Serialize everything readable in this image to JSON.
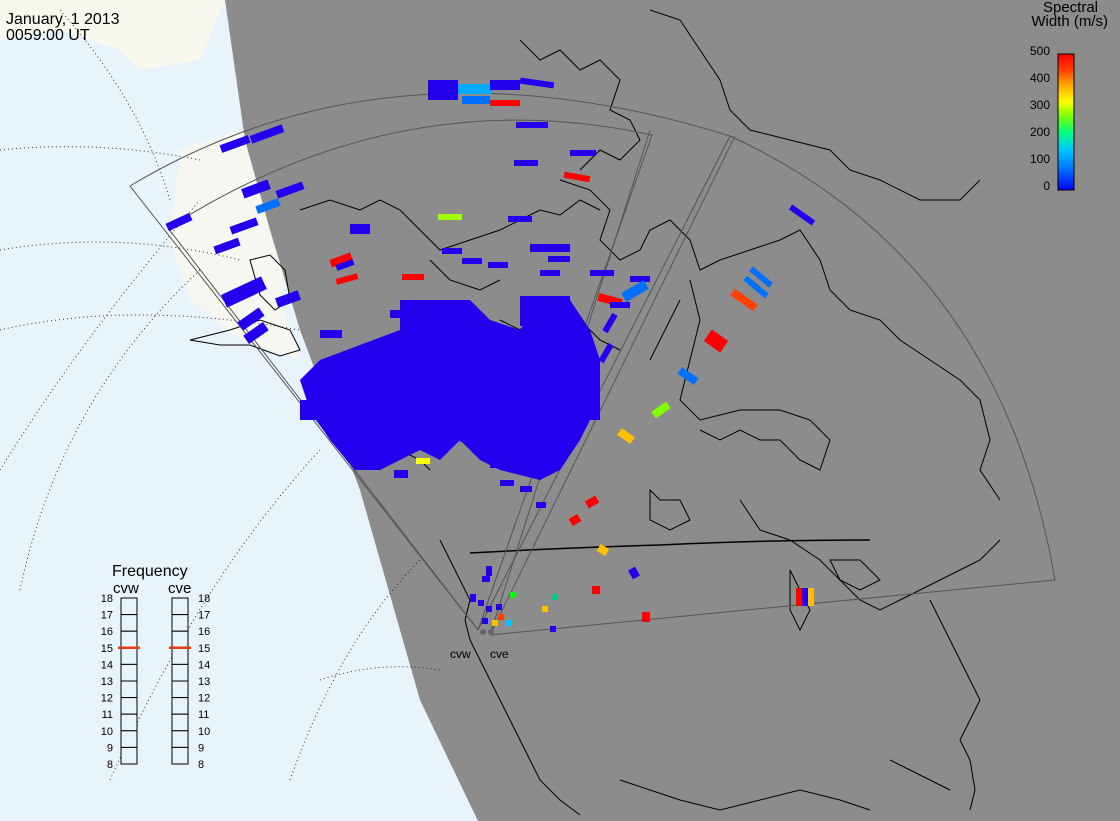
{
  "header": {
    "date": "January, 1 2013",
    "time": "0059:00 UT"
  },
  "colorbar": {
    "title_line1": "Spectral",
    "title_line2": "Width (m/s)",
    "ticks": [
      "500",
      "400",
      "300",
      "200",
      "100",
      "0"
    ],
    "colors": [
      "#0000ff",
      "#0070ff",
      "#00c8ff",
      "#00ff80",
      "#80ff00",
      "#ffff00",
      "#ffa000",
      "#ff4000",
      "#ff0000"
    ]
  },
  "frequency_panel": {
    "title": "Frequency",
    "radars": [
      "cvw",
      "cve"
    ],
    "scale": [
      "18",
      "17",
      "16",
      "15",
      "14",
      "13",
      "12",
      "11",
      "10",
      "9",
      "8"
    ],
    "selected": [
      "15",
      "15"
    ]
  },
  "radar_sites": {
    "west_label": "cvw",
    "east_label": "cve"
  },
  "colors": {
    "land": "#8c8c8c",
    "ocean": "#e8f4fc",
    "daylight_land": "#f8f8ec",
    "cell_default": "#2200ee",
    "selected_marker": "#e04010"
  }
}
